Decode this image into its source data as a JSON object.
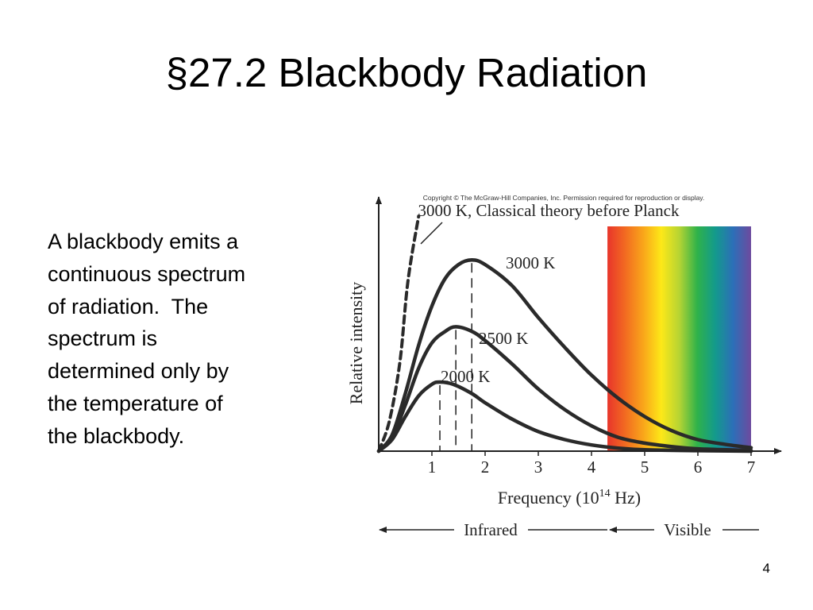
{
  "slide": {
    "title": "§27.2 Blackbody Radiation",
    "body_lines": [
      "A blackbody emits a",
      "continuous spectrum",
      "of radiation.  The",
      "spectrum is",
      "determined only by",
      "the temperature of",
      "the blackbody."
    ],
    "page_number": "4"
  },
  "figure": {
    "copyright": "Copyright © The McGraw-Hill Companies, Inc. Permission required for reproduction or display.",
    "classical_label": "3000 K, Classical theory before Planck",
    "region_labels": {
      "infrared": "Infrared",
      "visible": "Visible"
    },
    "spectrum_colors": [
      "#e8352b",
      "#f26b21",
      "#f9a61a",
      "#fde818",
      "#b6d433",
      "#2fb24a",
      "#139a8c",
      "#2c6fb8",
      "#6e4a9e"
    ]
  },
  "chart_data": {
    "type": "line",
    "xlabel": "Frequency (10^14 Hz)",
    "xlabel_base": "Frequency (10",
    "xlabel_exp": "14",
    "xlabel_unit": " Hz)",
    "ylabel": "Relative intensity",
    "xlim": [
      0,
      7.5
    ],
    "ylim": [
      0,
      1
    ],
    "x_ticks": [
      "1",
      "2",
      "3",
      "4",
      "5",
      "6",
      "7"
    ],
    "grid": false,
    "legend": "none",
    "visible_band": [
      4.3,
      7.0
    ],
    "series": [
      {
        "name": "3000 K",
        "peak_x": 1.75,
        "peak_y": 0.83,
        "peak_marker": true,
        "points": [
          [
            0,
            0
          ],
          [
            0.25,
            0.07
          ],
          [
            0.5,
            0.25
          ],
          [
            0.75,
            0.46
          ],
          [
            1.0,
            0.63
          ],
          [
            1.25,
            0.75
          ],
          [
            1.5,
            0.81
          ],
          [
            1.75,
            0.83
          ],
          [
            2.0,
            0.81
          ],
          [
            2.5,
            0.72
          ],
          [
            3.0,
            0.58
          ],
          [
            3.5,
            0.45
          ],
          [
            4.0,
            0.33
          ],
          [
            4.5,
            0.23
          ],
          [
            5.0,
            0.15
          ],
          [
            5.5,
            0.09
          ],
          [
            6.0,
            0.05
          ],
          [
            6.5,
            0.03
          ],
          [
            7.0,
            0.015
          ]
        ]
      },
      {
        "name": "2500 K",
        "peak_x": 1.45,
        "peak_y": 0.54,
        "peak_marker": true,
        "points": [
          [
            0,
            0
          ],
          [
            0.25,
            0.06
          ],
          [
            0.5,
            0.2
          ],
          [
            0.75,
            0.36
          ],
          [
            1.0,
            0.47
          ],
          [
            1.25,
            0.52
          ],
          [
            1.45,
            0.54
          ],
          [
            1.75,
            0.52
          ],
          [
            2.0,
            0.48
          ],
          [
            2.5,
            0.38
          ],
          [
            3.0,
            0.27
          ],
          [
            3.5,
            0.18
          ],
          [
            4.0,
            0.11
          ],
          [
            4.5,
            0.06
          ],
          [
            5.0,
            0.035
          ],
          [
            5.5,
            0.02
          ],
          [
            6.0,
            0.01
          ],
          [
            7.0,
            0.003
          ]
        ]
      },
      {
        "name": "2000 K",
        "peak_x": 1.15,
        "peak_y": 0.3,
        "peak_marker": true,
        "points": [
          [
            0,
            0
          ],
          [
            0.25,
            0.05
          ],
          [
            0.5,
            0.15
          ],
          [
            0.75,
            0.24
          ],
          [
            1.0,
            0.29
          ],
          [
            1.15,
            0.3
          ],
          [
            1.4,
            0.29
          ],
          [
            1.75,
            0.25
          ],
          [
            2.0,
            0.21
          ],
          [
            2.5,
            0.14
          ],
          [
            3.0,
            0.085
          ],
          [
            3.5,
            0.05
          ],
          [
            4.0,
            0.027
          ],
          [
            4.5,
            0.013
          ],
          [
            5.0,
            0.006
          ],
          [
            6.0,
            0.002
          ],
          [
            7.0,
            0.0
          ]
        ]
      },
      {
        "name": "3000 K, Classical theory before Planck",
        "dashed": true,
        "points": [
          [
            0,
            0
          ],
          [
            0.2,
            0.13
          ],
          [
            0.4,
            0.39
          ],
          [
            0.55,
            0.74
          ],
          [
            0.75,
            1.02
          ]
        ]
      }
    ]
  }
}
